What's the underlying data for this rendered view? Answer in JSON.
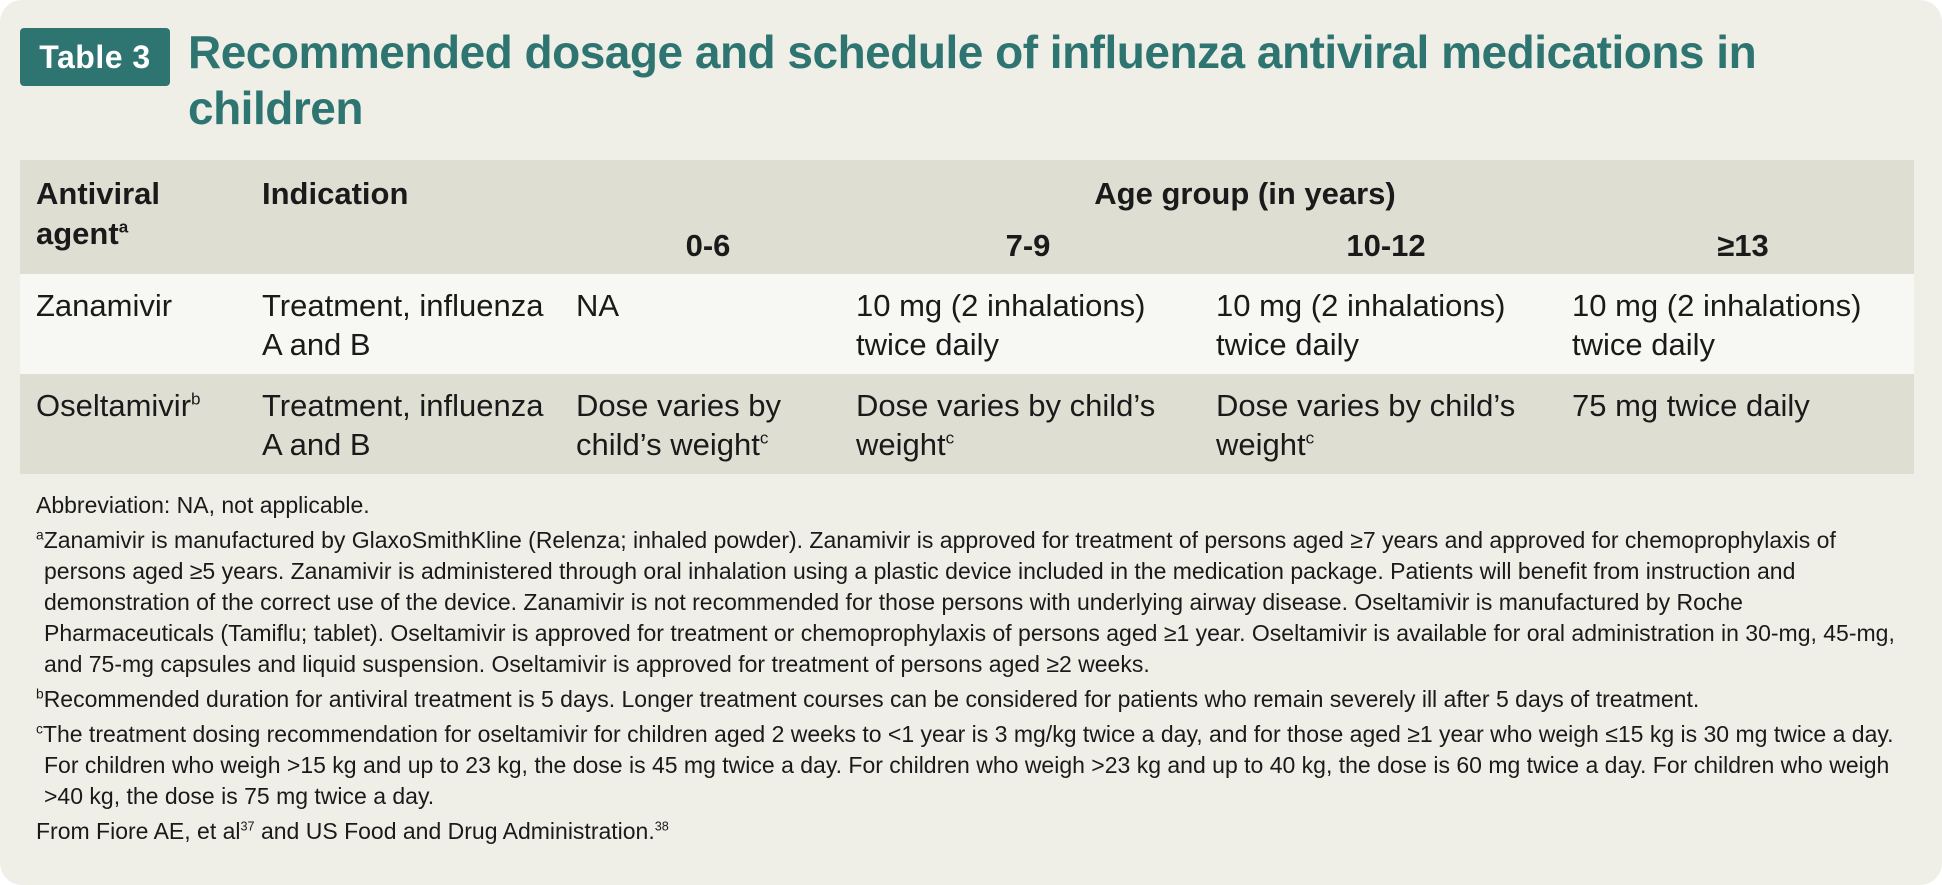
{
  "header": {
    "badge": "Table 3",
    "title": "Recommended dosage and schedule of influenza antiviral medications in children"
  },
  "table": {
    "col_agent": "Antiviral agent",
    "col_agent_mark": "a",
    "col_indication": "Indication",
    "age_group": "Age group (in years)",
    "ages": [
      "0-6",
      "7-9",
      "10-12",
      "≥13"
    ],
    "rows": [
      {
        "agent": "Zanamivir",
        "agent_mark": "",
        "indication": "Treatment, influenza A and B",
        "doses": [
          {
            "text": "NA",
            "mark": ""
          },
          {
            "text": "10 mg (2 inhalations) twice daily",
            "mark": ""
          },
          {
            "text": "10 mg (2 inhalations) twice daily",
            "mark": ""
          },
          {
            "text": "10 mg (2 inhalations) twice daily",
            "mark": ""
          }
        ]
      },
      {
        "agent": "Oseltamivir",
        "agent_mark": "b",
        "indication": "Treatment, influenza A and B",
        "doses": [
          {
            "text": "Dose varies by child’s weight",
            "mark": "c"
          },
          {
            "text": "Dose varies by child’s weight",
            "mark": "c"
          },
          {
            "text": "Dose varies by child’s weight",
            "mark": "c"
          },
          {
            "text": "75 mg twice daily",
            "mark": ""
          }
        ]
      }
    ]
  },
  "notes": {
    "abbreviation": "Abbreviation: NA, not applicable.",
    "footnotes": [
      {
        "mark": "a",
        "text": "Zanamivir is manufactured by GlaxoSmithKline (Relenza; inhaled powder). Zanamivir is approved for treatment of persons aged ≥7 years and approved for chemoprophylaxis of persons aged ≥5 years. Zanamivir is administered through oral inhalation using a plastic device included in the medication package. Patients will benefit from instruction and demonstration of the correct use of the device. Zanamivir is not recommended for those persons with underlying airway disease. Oseltamivir is manufactured by Roche Pharmaceuticals (Tamiflu; tablet). Oseltamivir is approved for treatment or chemoprophylaxis of persons aged ≥1 year. Oseltamivir is available for oral administration in 30-mg, 45-mg, and 75-mg capsules and liquid suspension. Oseltamivir is approved for treatment of persons aged ≥2 weeks."
      },
      {
        "mark": "b",
        "text": "Recommended duration for antiviral treatment is 5 days. Longer treatment courses can be considered for patients who remain severely ill after 5 days of treatment."
      },
      {
        "mark": "c",
        "text": "The treatment dosing recommendation for oseltamivir for children aged 2 weeks to <1 year is 3 mg/kg twice a day, and for those aged ≥1 year who weigh ≤15 kg is 30 mg twice a day. For children who weigh >15 kg and up to 23 kg, the dose is 45 mg twice a day. For children who weigh >23 kg and up to 40 kg, the dose is 60 mg twice a day. For children who weigh >40 kg, the dose is 75 mg twice a day."
      }
    ],
    "source_prefix": "From Fiore AE, et al",
    "source_ref1": "37",
    "source_mid": " and US Food and Drug Administration.",
    "source_ref2": "38"
  }
}
